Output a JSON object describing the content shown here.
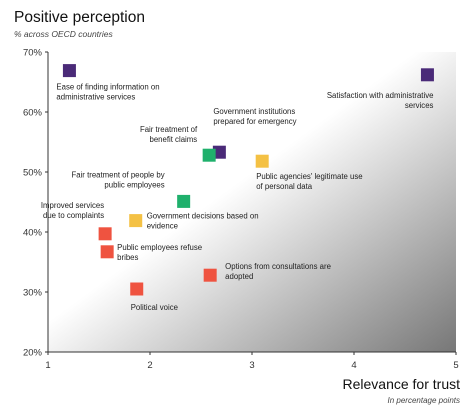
{
  "title": "Positive perception",
  "subtitle": "% across OECD countries",
  "x_axis_title": "Relevance for trust",
  "x_axis_subtitle": "In percentage points",
  "colors": {
    "purple": "#4a2a78",
    "green": "#1fb06c",
    "yellow": "#f4c144",
    "red": "#ef5340",
    "gradient_dark": "#777777",
    "gradient_light": "#ffffff"
  },
  "chart_data": {
    "type": "scatter",
    "title": "Positive perception",
    "subtitle": "% across OECD countries",
    "xlabel": "Relevance for trust",
    "xlabel_note": "In percentage points",
    "ylabel": "",
    "xlim": [
      1,
      5
    ],
    "ylim": [
      20,
      70
    ],
    "x_ticks": [
      "1",
      "2",
      "3",
      "4",
      "5"
    ],
    "y_ticks": [
      "20%",
      "30%",
      "40%",
      "50%",
      "60%",
      "70%"
    ],
    "grid": false,
    "background": "diagonal gradient, dark toward bottom-right",
    "points": [
      {
        "label_lines": [
          "Ease of finding information on",
          "administrative services"
        ],
        "x": 1.21,
        "y": 66.9,
        "color": "purple"
      },
      {
        "label_lines": [
          "Satisfaction with administrative",
          "services"
        ],
        "x": 4.72,
        "y": 66.2,
        "color": "purple"
      },
      {
        "label_lines": [
          "Government institutions",
          "prepared for emergency"
        ],
        "x": 2.68,
        "y": 53.3,
        "color": "purple"
      },
      {
        "label_lines": [
          "Fair treatment of",
          "benefit claims"
        ],
        "x": 2.58,
        "y": 52.8,
        "color": "green"
      },
      {
        "label_lines": [
          "Public agencies' legitimate use",
          "of personal data"
        ],
        "x": 3.1,
        "y": 51.8,
        "color": "yellow"
      },
      {
        "label_lines": [
          "Fair treatment of people by",
          "public employees"
        ],
        "x": 2.33,
        "y": 45.1,
        "color": "green"
      },
      {
        "label_lines": [
          "Government decisions based on",
          "evidence"
        ],
        "x": 1.86,
        "y": 41.9,
        "color": "yellow"
      },
      {
        "label_lines": [
          "Improved services",
          "due to complaints"
        ],
        "x": 1.56,
        "y": 39.7,
        "color": "red"
      },
      {
        "label_lines": [
          "Public employees refuse",
          "bribes"
        ],
        "x": 1.58,
        "y": 36.7,
        "color": "red"
      },
      {
        "label_lines": [
          "Options from consultations are",
          "adopted"
        ],
        "x": 2.59,
        "y": 32.8,
        "color": "red"
      },
      {
        "label_lines": [
          "Political voice"
        ],
        "x": 1.87,
        "y": 30.5,
        "color": "red"
      }
    ]
  }
}
